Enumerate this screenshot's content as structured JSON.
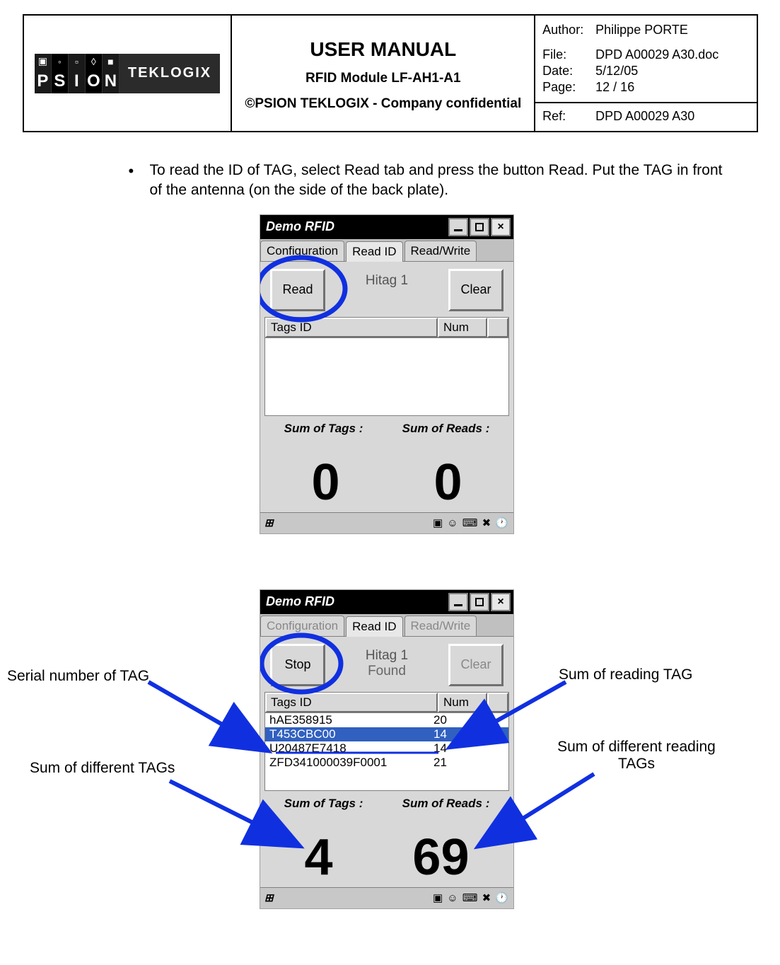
{
  "header": {
    "title": "USER MANUAL",
    "subtitle": "RFID Module LF-AH1-A1",
    "confidential": "©PSION TEKLOGIX - Company confidential",
    "logo_psion": "PSION",
    "logo_teklogix": "TEKLOGIX",
    "meta": {
      "author_label": "Author:",
      "author_value": "Philippe PORTE",
      "file_label": "File:",
      "file_value": "DPD A00029 A30.doc",
      "date_label": "Date:",
      "date_value": "5/12/05",
      "page_label": "Page:",
      "page_value": "12 /  16",
      "ref_label": "Ref:",
      "ref_value": "DPD A00029 A30"
    }
  },
  "instruction": "To read the ID of TAG, select Read tab and press the button Read. Put the TAG in front of the antenna (on the side of the back plate).",
  "app": {
    "title": "Demo RFID",
    "tabs": {
      "config": "Configuration",
      "readid": "Read ID",
      "readwrite": "Read/Write"
    },
    "buttons": {
      "read": "Read",
      "stop": "Stop",
      "clear": "Clear"
    },
    "labels": {
      "hitag": "Hitag 1",
      "found": "Found",
      "tagsid": "Tags ID",
      "num": "Num",
      "sumtags": "Sum of Tags :",
      "sumreads": "Sum of Reads :"
    },
    "shot1": {
      "sum_tags": "0",
      "sum_reads": "0",
      "rows": []
    },
    "shot2": {
      "sum_tags": "4",
      "sum_reads": "69",
      "rows": [
        {
          "id": "hAE358915",
          "num": "20"
        },
        {
          "id": "T453CBC00",
          "num": "14",
          "selected": true
        },
        {
          "id": "U20487E7418",
          "num": "14"
        },
        {
          "id": "ZFD341000039F0001",
          "num": "21"
        }
      ]
    }
  },
  "callouts": {
    "serial": "Serial number of TAG",
    "diff_tags": "Sum of different TAGs",
    "read_tag": "Sum of reading TAG",
    "diff_reads": "Sum of different reading TAGs"
  },
  "colors": {
    "annotation_blue": "#1030e0",
    "highlight_stroke": "#1030e0"
  }
}
